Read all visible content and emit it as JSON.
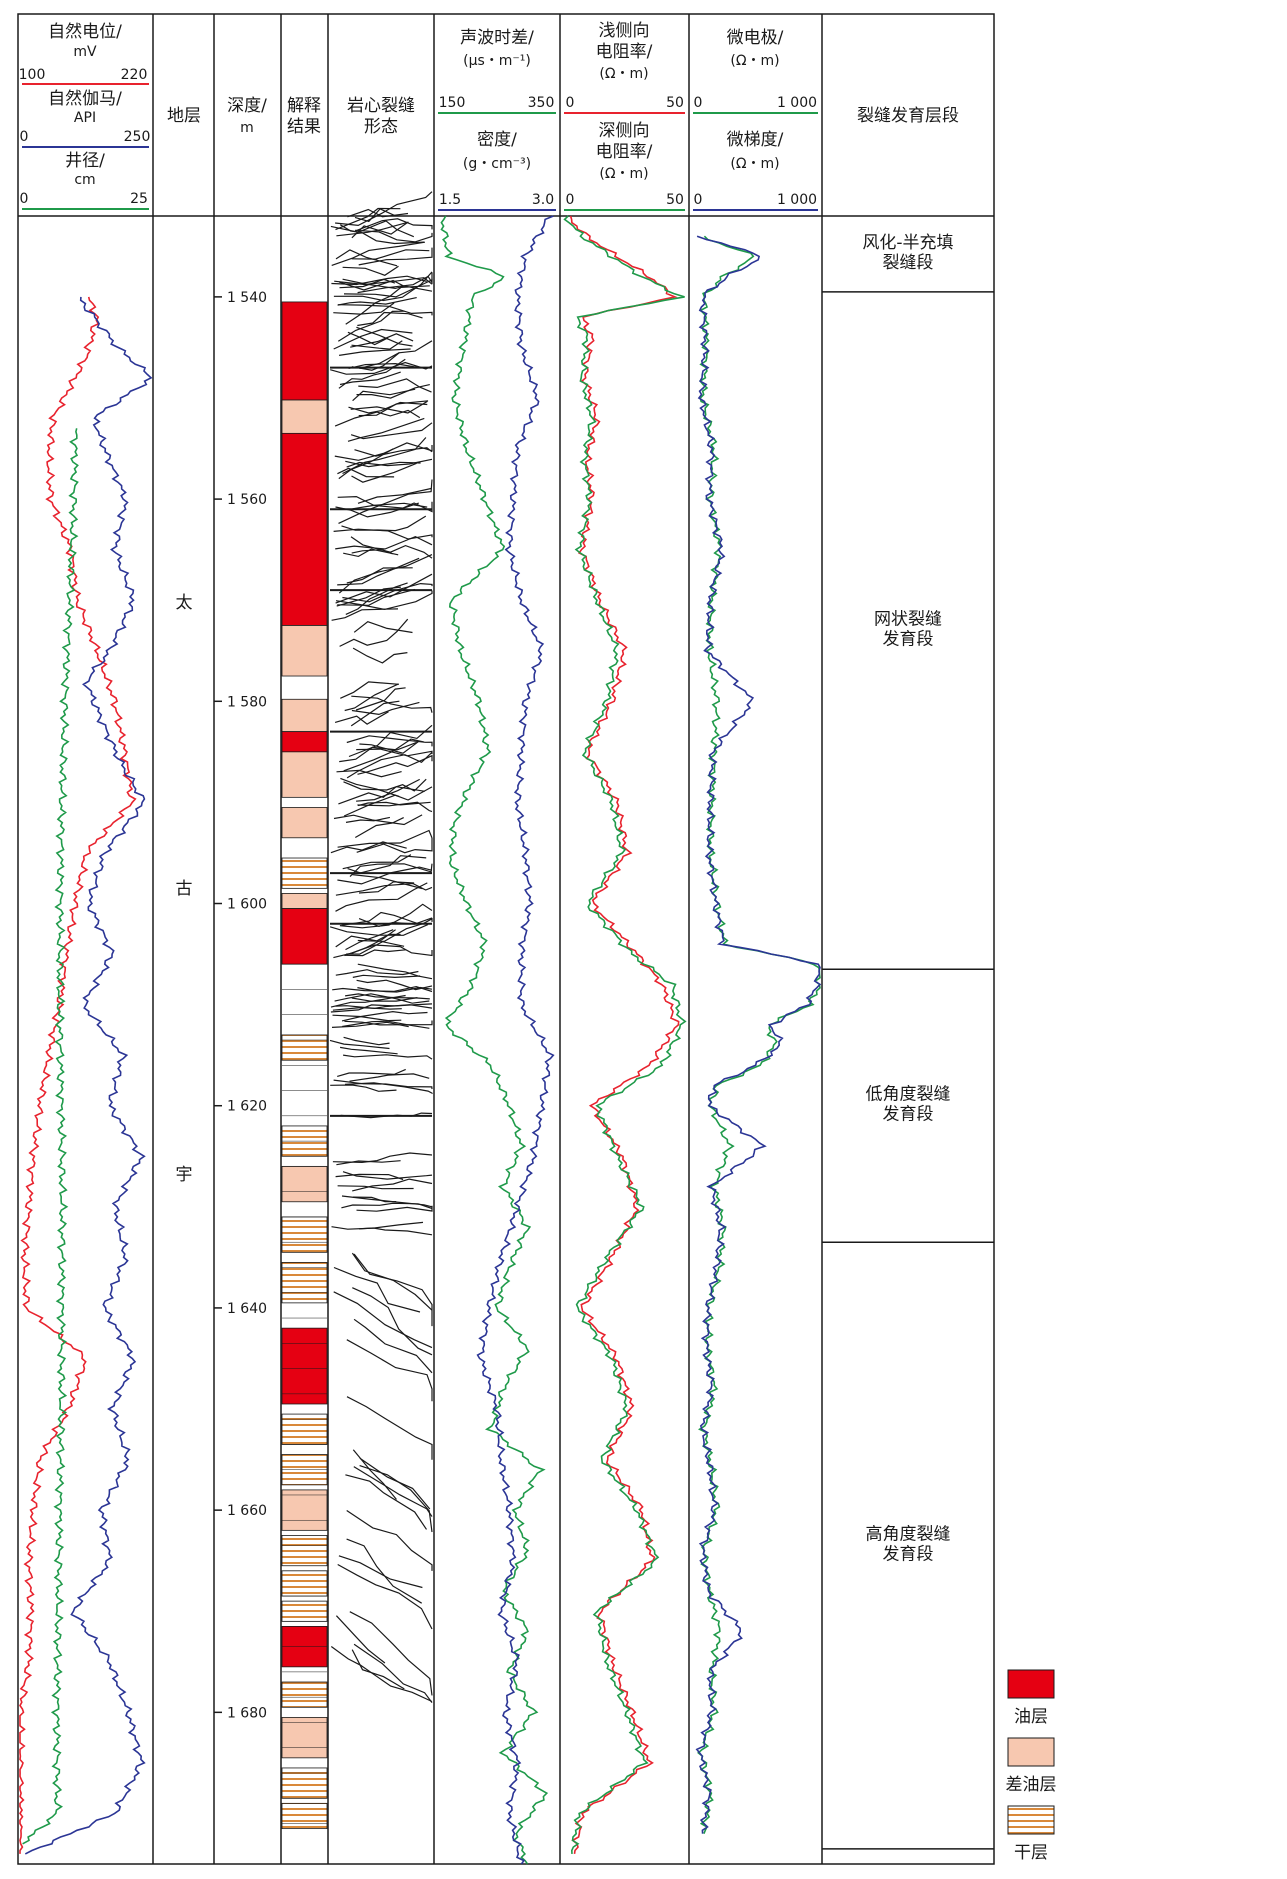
{
  "headers": {
    "sp_title": "自然电位/",
    "sp_unit": "mV",
    "sp_min": "100",
    "sp_max": "220",
    "gr_title": "自然伽马/",
    "gr_unit": "API",
    "gr_min": "0",
    "gr_max": "250",
    "cal_title": "井径/",
    "cal_unit": "cm",
    "cal_min": "0",
    "cal_max": "25",
    "formation": "地层",
    "depth_title": "深度/",
    "depth_unit": "m",
    "interp_1": "解释",
    "interp_2": "结果",
    "core_1": "岩心裂缝",
    "core_2": "形态",
    "ac_title": "声波时差/",
    "ac_unit": "(μs・m⁻¹)",
    "ac_min": "150",
    "ac_max": "350",
    "den_title": "密度/",
    "den_unit": "(g・cm⁻³)",
    "den_min": "1.5",
    "den_max": "3.0",
    "lls_1": "浅侧向",
    "lls_2": "电阻率/",
    "lls_unit": "(Ω・m)",
    "lls_min": "0",
    "lls_max": "50",
    "lld_1": "深侧向",
    "lld_2": "电阻率/",
    "lld_unit": "(Ω・m)",
    "lld_min": "0",
    "lld_max": "50",
    "mn_title": "微电极/",
    "mn_unit": "(Ω・m)",
    "mn_min": "0",
    "mn_max": "1 000",
    "mi_title": "微梯度/",
    "mi_unit": "(Ω・m)",
    "mi_min": "0",
    "mi_max": "1 000",
    "zones_title": "裂缝发育层段"
  },
  "formation_chars": [
    "太",
    "古",
    "宇"
  ],
  "colors": {
    "sp": "#e8232e",
    "gr": "#2b3595",
    "caliper": "#1f9a4a",
    "oil": "#e50012",
    "poor_oil": "#f7c8b0",
    "dry_stripe": "#d9893a"
  },
  "chart_data": {
    "type": "line",
    "ylabel": "深度/m",
    "ylim": [
      1532,
      1695
    ],
    "depth_ticks": [
      1540,
      1560,
      1580,
      1600,
      1620,
      1640,
      1660,
      1680
    ],
    "depth_tick_labels": [
      "1 540",
      "1 560",
      "1 580",
      "1 600",
      "1 620",
      "1 640",
      "1 660",
      "1 680"
    ],
    "tracks": [
      {
        "name": "track1",
        "series": [
          {
            "name": "自然电位/mV",
            "color": "#e8232e",
            "xlim": [
              100,
              220
            ],
            "depth": [
              1540,
              1542,
              1546,
              1552,
              1556,
              1560,
              1565,
              1570,
              1575,
              1580,
              1585,
              1590,
              1595,
              1600,
              1605,
              1610,
              1615,
              1620,
              1625,
              1630,
              1635,
              1640,
              1645,
              1650,
              1655,
              1660,
              1665,
              1670,
              1675,
              1680,
              1685,
              1690,
              1694
            ],
            "x": [
              162,
              170,
              160,
              130,
              126,
              128,
              146,
              152,
              170,
              186,
              195,
              202,
              160,
              150,
              142,
              136,
              126,
              118,
              112,
              108,
              104,
              106,
              160,
              144,
              118,
              112,
              108,
              110,
              108,
              100,
              100,
              100,
              100
            ]
          },
          {
            "name": "自然伽马/API",
            "color": "#2b3595",
            "xlim": [
              0,
              250
            ],
            "depth": [
              1540,
              1542,
              1545,
              1548,
              1552,
              1555,
              1560,
              1565,
              1570,
              1575,
              1578,
              1582,
              1586,
              1590,
              1595,
              1600,
              1605,
              1610,
              1615,
              1620,
              1625,
              1630,
              1635,
              1640,
              1645,
              1650,
              1655,
              1660,
              1665,
              1670,
              1675,
              1680,
              1685,
              1690,
              1694
            ],
            "x": [
              110,
              140,
              185,
              250,
              140,
              160,
              200,
              180,
              215,
              170,
              125,
              155,
              190,
              235,
              160,
              130,
              175,
              120,
              195,
              170,
              230,
              180,
              200,
              160,
              215,
              175,
              205,
              155,
              170,
              100,
              170,
              205,
              230,
              180,
              10
            ]
          },
          {
            "name": "井径/cm",
            "color": "#1f9a4a",
            "xlim": [
              0,
              25
            ],
            "depth": [
              1553,
              1560,
              1570,
              1580,
              1590,
              1600,
              1610,
              1620,
              1630,
              1640,
              1650,
              1660,
              1670,
              1680,
              1690,
              1693
            ],
            "x": [
              10.5,
              10.2,
              9.4,
              8.5,
              7.9,
              7.6,
              7.5,
              7.8,
              8.0,
              7.9,
              7.8,
              7.5,
              7.2,
              7.0,
              7.0,
              0.5
            ]
          }
        ]
      },
      {
        "name": "track5",
        "series": [
          {
            "name": "声波时差/(μs・m⁻¹)",
            "color": "#1f9a4a",
            "xlim": [
              150,
              350
            ],
            "depth": [
              1532,
              1536,
              1538,
              1540,
              1545,
              1550,
              1555,
              1560,
              1565,
              1570,
              1575,
              1580,
              1585,
              1589,
              1592,
              1596,
              1600,
              1604,
              1608,
              1612,
              1616,
              1620,
              1624,
              1628,
              1632,
              1636,
              1640,
              1644,
              1648,
              1652,
              1656,
              1660,
              1664,
              1668,
              1672,
              1676,
              1680,
              1684,
              1688,
              1692,
              1695
            ],
            "x": [
              160,
              170,
              265,
              210,
              195,
              180,
              200,
              230,
              260,
              175,
              190,
              220,
              235,
              200,
              180,
              175,
              200,
              230,
              210,
              165,
              240,
              270,
              290,
              260,
              300,
              270,
              250,
              300,
              260,
              240,
              320,
              280,
              300,
              260,
              300,
              270,
              310,
              260,
              330,
              280,
              300
            ]
          },
          {
            "name": "密度/(g・cm⁻³)",
            "color": "#2b3595",
            "xlim": [
              1.5,
              3.0
            ],
            "depth": [
              1532,
              1536,
              1540,
              1545,
              1550,
              1555,
              1560,
              1565,
              1570,
              1575,
              1580,
              1585,
              1590,
              1595,
              1600,
              1605,
              1610,
              1615,
              1620,
              1625,
              1630,
              1635,
              1640,
              1645,
              1650,
              1655,
              1660,
              1665,
              1670,
              1675,
              1680,
              1685,
              1690,
              1695
            ],
            "x": [
              2.9,
              2.6,
              2.5,
              2.55,
              2.75,
              2.5,
              2.45,
              2.4,
              2.55,
              2.8,
              2.6,
              2.55,
              2.5,
              2.6,
              2.65,
              2.55,
              2.55,
              2.9,
              2.8,
              2.7,
              2.5,
              2.3,
              2.15,
              2.05,
              2.25,
              2.3,
              2.4,
              2.45,
              2.3,
              2.5,
              2.35,
              2.5,
              2.4,
              2.55
            ]
          }
        ]
      },
      {
        "name": "track6",
        "series": [
          {
            "name": "浅侧向电阻率/(Ω・m)",
            "color": "#e8232e",
            "xlim": [
              0,
              50
            ],
            "depth": [
              1532,
              1534,
              1536,
              1538,
              1540,
              1542,
              1544,
              1548,
              1552,
              1556,
              1560,
              1565,
              1570,
              1575,
              1580,
              1585,
              1590,
              1595,
              1600,
              1605,
              1608,
              1612,
              1616,
              1620,
              1625,
              1630,
              1635,
              1640,
              1645,
              1650,
              1655,
              1660,
              1665,
              1670,
              1675,
              1680,
              1685,
              1690,
              1694
            ],
            "x": [
              2,
              10,
              22,
              35,
              45,
              8,
              12,
              9,
              14,
              10,
              12,
              8,
              15,
              25,
              20,
              10,
              22,
              26,
              12,
              30,
              40,
              46,
              35,
              12,
              24,
              30,
              20,
              8,
              22,
              28,
              18,
              32,
              36,
              15,
              20,
              28,
              35,
              8,
              5
            ]
          },
          {
            "name": "深侧向电阻率/(Ω・m)",
            "color": "#1f9a4a",
            "xlim": [
              0,
              50
            ],
            "depth": [
              1532,
              1534,
              1536,
              1538,
              1540,
              1542,
              1544,
              1548,
              1552,
              1556,
              1560,
              1565,
              1570,
              1575,
              1580,
              1585,
              1590,
              1595,
              1600,
              1605,
              1608,
              1612,
              1616,
              1620,
              1625,
              1630,
              1635,
              1640,
              1645,
              1650,
              1655,
              1660,
              1665,
              1670,
              1675,
              1680,
              1685,
              1690,
              1694
            ],
            "x": [
              1,
              8,
              20,
              32,
              48,
              6,
              10,
              8,
              12,
              9,
              11,
              7,
              14,
              22,
              18,
              9,
              20,
              24,
              10,
              28,
              44,
              48,
              40,
              14,
              22,
              32,
              18,
              6,
              20,
              26,
              16,
              30,
              38,
              14,
              18,
              26,
              33,
              7,
              4
            ]
          }
        ]
      },
      {
        "name": "track7",
        "series": [
          {
            "name": "微电极/(Ω・m)",
            "color": "#1f9a4a",
            "xlim": [
              0,
              1000
            ],
            "depth": [
              1534,
              1536,
              1538,
              1540,
              1545,
              1550,
              1555,
              1560,
              1565,
              1570,
              1575,
              1580,
              1585,
              1590,
              1595,
              1600,
              1604,
              1606,
              1608,
              1610,
              1612,
              1614,
              1616,
              1618,
              1620,
              1624,
              1628,
              1632,
              1636,
              1640,
              1644,
              1648,
              1652,
              1656,
              1660,
              1664,
              1668,
              1672,
              1676,
              1680,
              1684,
              1688,
              1692
            ],
            "x": [
              80,
              500,
              250,
              100,
              120,
              90,
              180,
              150,
              220,
              160,
              140,
              200,
              180,
              160,
              150,
              200,
              260,
              980,
              1000,
              920,
              600,
              650,
              540,
              200,
              150,
              300,
              180,
              250,
              220,
              140,
              130,
              180,
              100,
              160,
              200,
              100,
              140,
              220,
              160,
              180,
              80,
              150,
              100
            ]
          },
          {
            "name": "微梯度/(Ω・m)",
            "color": "#2b3595",
            "xlim": [
              0,
              1000
            ],
            "depth": [
              1534,
              1536,
              1538,
              1540,
              1545,
              1550,
              1555,
              1560,
              1565,
              1570,
              1575,
              1580,
              1585,
              1590,
              1595,
              1600,
              1604,
              1606,
              1608,
              1610,
              1612,
              1614,
              1616,
              1618,
              1620,
              1624,
              1628,
              1632,
              1636,
              1640,
              1644,
              1648,
              1652,
              1656,
              1660,
              1664,
              1668,
              1672,
              1676,
              1680,
              1684,
              1688,
              1692
            ],
            "x": [
              60,
              560,
              280,
              90,
              110,
              80,
              160,
              140,
              240,
              150,
              130,
              480,
              170,
              150,
              140,
              190,
              250,
              1000,
              980,
              900,
              620,
              700,
              500,
              180,
              140,
              560,
              160,
              230,
              200,
              130,
              120,
              160,
              90,
              150,
              180,
              90,
              130,
              400,
              150,
              160,
              70,
              140,
              90
            ]
          }
        ]
      }
    ],
    "interpretation_legend": [
      "油层",
      "差油层",
      "干层"
    ],
    "interpretation_layers": [
      {
        "top": 1540.5,
        "bottom": 1550.2,
        "type": "oil"
      },
      {
        "top": 1550.2,
        "bottom": 1553.5,
        "type": "poor"
      },
      {
        "top": 1553.5,
        "bottom": 1572.5,
        "type": "oil"
      },
      {
        "top": 1572.5,
        "bottom": 1577.5,
        "type": "poor"
      },
      {
        "top": 1579.8,
        "bottom": 1583.0,
        "type": "poor"
      },
      {
        "top": 1583.0,
        "bottom": 1585.0,
        "type": "oil"
      },
      {
        "top": 1585.0,
        "bottom": 1589.5,
        "type": "poor"
      },
      {
        "top": 1590.5,
        "bottom": 1593.5,
        "type": "poor"
      },
      {
        "top": 1595.5,
        "bottom": 1598.5,
        "type": "dry"
      },
      {
        "top": 1599.0,
        "bottom": 1600.5,
        "type": "poor"
      },
      {
        "top": 1600.5,
        "bottom": 1606.0,
        "type": "oil"
      },
      {
        "top": 1613.0,
        "bottom": 1615.5,
        "type": "dry"
      },
      {
        "top": 1622.0,
        "bottom": 1625.0,
        "type": "dry"
      },
      {
        "top": 1626.0,
        "bottom": 1629.5,
        "type": "poor"
      },
      {
        "top": 1631.0,
        "bottom": 1634.5,
        "type": "dry"
      },
      {
        "top": 1635.5,
        "bottom": 1639.5,
        "type": "dry"
      },
      {
        "top": 1642.0,
        "bottom": 1649.5,
        "type": "oil"
      },
      {
        "top": 1650.5,
        "bottom": 1653.5,
        "type": "dry"
      },
      {
        "top": 1654.5,
        "bottom": 1657.5,
        "type": "dry"
      },
      {
        "top": 1658.0,
        "bottom": 1662.0,
        "type": "poor"
      },
      {
        "top": 1662.5,
        "bottom": 1665.5,
        "type": "dry"
      },
      {
        "top": 1666.0,
        "bottom": 1668.5,
        "type": "dry"
      },
      {
        "top": 1669.0,
        "bottom": 1671.0,
        "type": "dry"
      },
      {
        "top": 1671.5,
        "bottom": 1675.5,
        "type": "oil"
      },
      {
        "top": 1677.0,
        "bottom": 1679.5,
        "type": "dry"
      },
      {
        "top": 1680.5,
        "bottom": 1684.5,
        "type": "poor"
      },
      {
        "top": 1685.5,
        "bottom": 1688.5,
        "type": "dry"
      },
      {
        "top": 1689.0,
        "bottom": 1691.5,
        "type": "dry"
      }
    ],
    "zones": [
      {
        "top": 1532,
        "bottom": 1539.5,
        "lines": [
          "风化-半充填",
          "裂缝段"
        ]
      },
      {
        "top": 1539.5,
        "bottom": 1606.5,
        "lines": [
          "网状裂缝",
          "发育段"
        ]
      },
      {
        "top": 1606.5,
        "bottom": 1633.5,
        "lines": [
          "低角度裂缝",
          "发育段"
        ]
      },
      {
        "top": 1633.5,
        "bottom": 1693.5,
        "lines": [
          "高角度裂缝",
          "发育段"
        ]
      }
    ],
    "core_fracture_regions": [
      {
        "top": 1532,
        "bottom": 1606,
        "style": "network"
      },
      {
        "top": 1606,
        "bottom": 1634,
        "style": "low-angle"
      },
      {
        "top": 1634,
        "bottom": 1675,
        "style": "high-angle"
      }
    ]
  }
}
